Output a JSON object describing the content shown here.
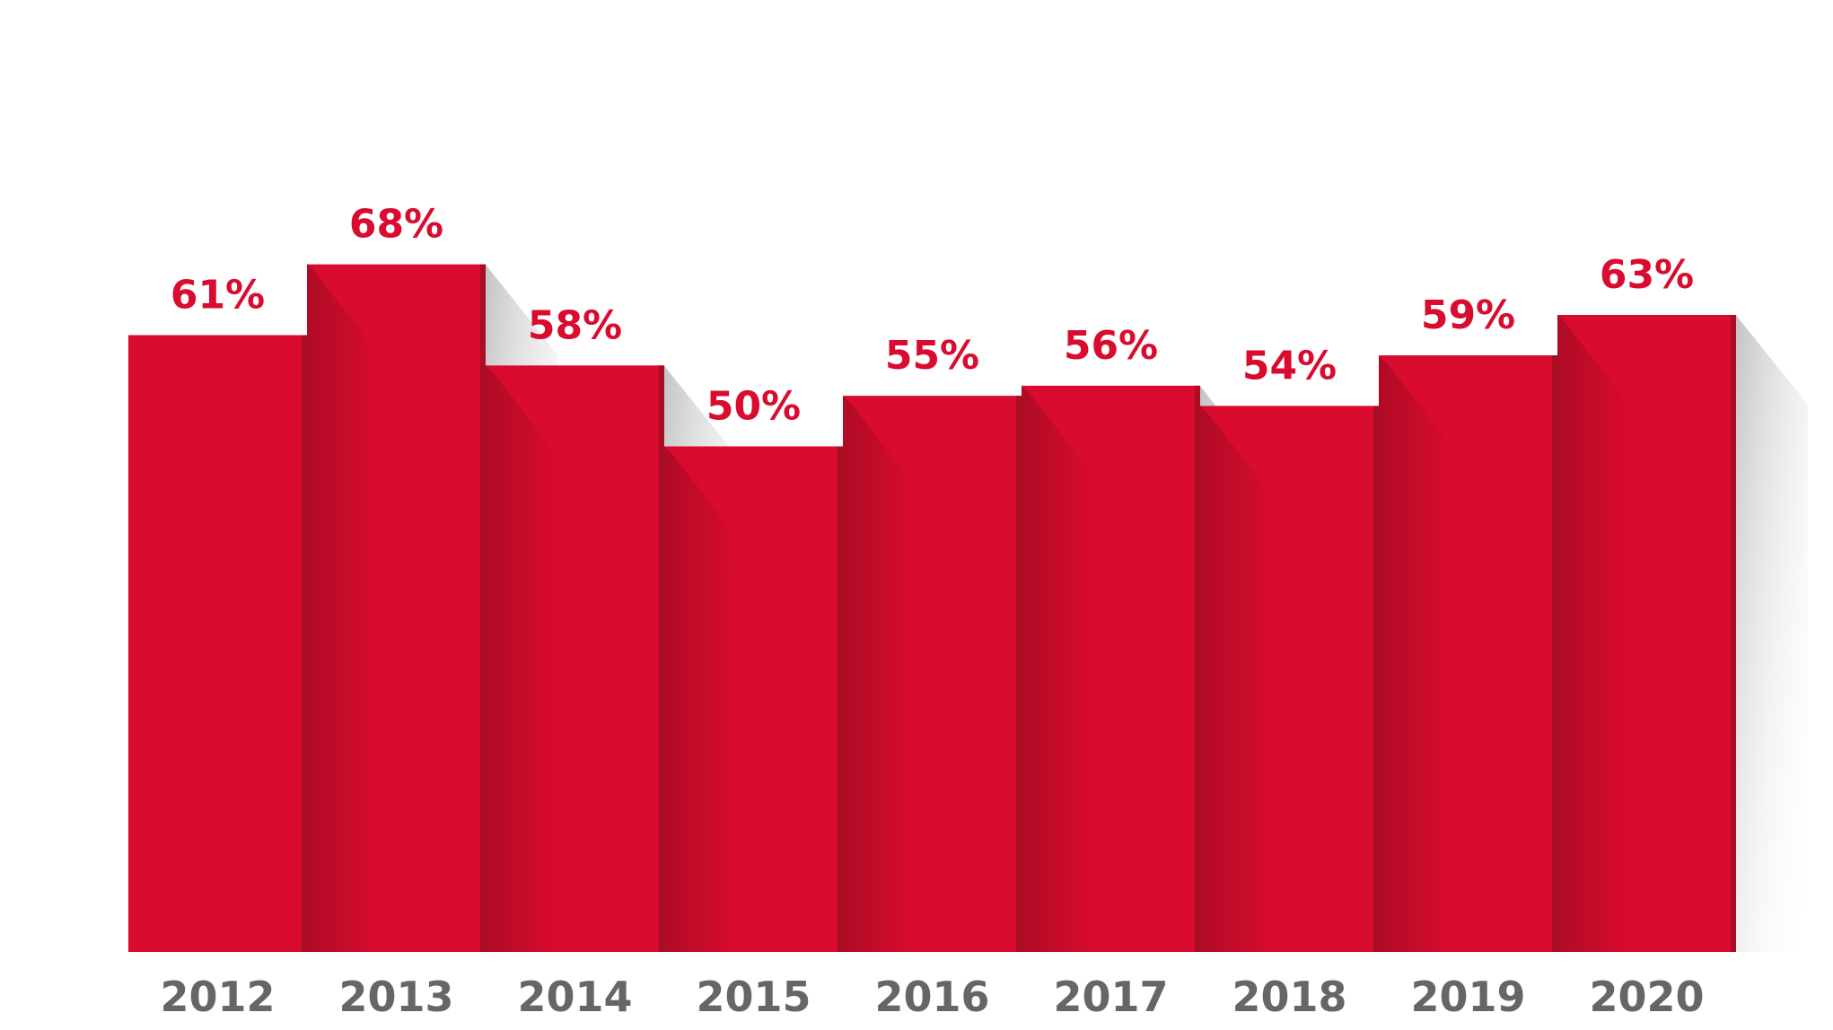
{
  "chart_data": {
    "type": "bar",
    "categories": [
      "2012",
      "2013",
      "2014",
      "2015",
      "2016",
      "2017",
      "2018",
      "2019",
      "2020"
    ],
    "values": [
      61,
      68,
      58,
      50,
      55,
      56,
      54,
      59,
      63
    ],
    "value_labels": [
      "61%",
      "68%",
      "58%",
      "50%",
      "55%",
      "56%",
      "54%",
      "59%",
      "63%"
    ],
    "ylim": [
      0,
      100
    ],
    "grid": false,
    "legend": "none",
    "title": "",
    "xlabel": "",
    "ylabel": ""
  },
  "colors": {
    "bar": "#d90b2e",
    "bar_side": "#a80e24",
    "value_label": "#d90b2e",
    "category_label": "#666666",
    "shadow": "#c9c9c9"
  }
}
